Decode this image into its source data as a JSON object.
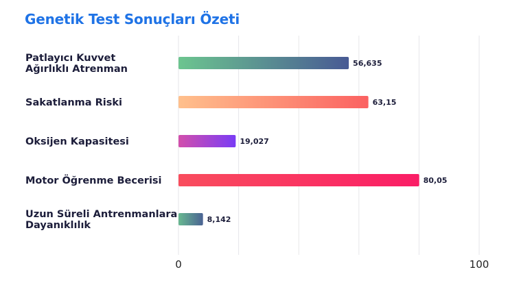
{
  "chart_data": {
    "type": "bar",
    "orientation": "horizontal",
    "title": "Genetik Test Sonuçları Özeti",
    "categories": [
      "Patlayıcı Kuvvet\nAğırlıklı Atrenman",
      "Sakatlanma Riski",
      "Oksijen Kapasitesi",
      "Motor Öğrenme Becerisi",
      "Uzun Süreli Antrenmanlara\nDayanıklılık"
    ],
    "values": [
      56.635,
      63.15,
      19.027,
      80.05,
      8.142
    ],
    "value_labels": [
      "56,635",
      "63,15",
      "19,027",
      "80,05",
      "8,142"
    ],
    "bar_gradients": [
      [
        "#6cc58f",
        "#485a94"
      ],
      [
        "#ffc08c",
        "#fb6161"
      ],
      [
        "#d24fac",
        "#7a3cf5"
      ],
      [
        "#f94d5d",
        "#fa1d66"
      ],
      [
        "#68b890",
        "#4a6393"
      ]
    ],
    "xlim": [
      0,
      100
    ],
    "tick_labels": [
      {
        "value": 0,
        "label": "0"
      },
      {
        "value": 100,
        "label": "100"
      }
    ],
    "gridline_values": [
      0,
      20,
      40,
      60,
      80,
      100
    ],
    "grid": true,
    "xlabel": "",
    "ylabel": ""
  }
}
